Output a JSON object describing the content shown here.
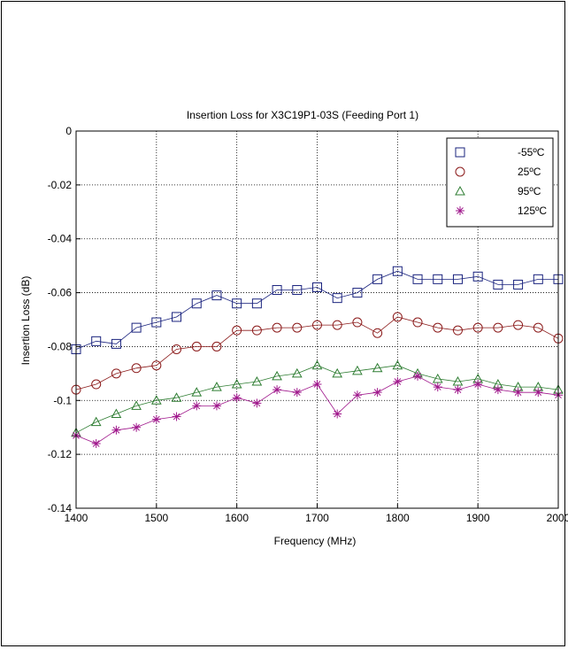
{
  "chart_data": {
    "type": "line",
    "title": "Insertion Loss for X3C19P1-03S (Feeding Port 1)",
    "xlabel": "Frequency (MHz)",
    "ylabel": "Insertion Loss (dB)",
    "xlim": [
      1400,
      2000
    ],
    "ylim": [
      -0.14,
      0
    ],
    "x_ticks": [
      1400,
      1500,
      1600,
      1700,
      1800,
      1900,
      2000
    ],
    "x_tick_labels": [
      "1400",
      "1500",
      "1600",
      "1700",
      "1800",
      "1900",
      "2000"
    ],
    "y_ticks": [
      0,
      -0.02,
      -0.04,
      -0.06,
      -0.08,
      -0.1,
      -0.12,
      -0.14
    ],
    "y_tick_labels": [
      "0",
      "-0.02",
      "-0.04",
      "-0.06",
      "-0.08",
      "-0.1",
      "-0.12",
      "-0.14"
    ],
    "grid": true,
    "legend_position": "top-right",
    "series": [
      {
        "name": "-55ºC",
        "color": "#1a237e",
        "marker": "square",
        "x": [
          1400,
          1425,
          1450,
          1475,
          1500,
          1525,
          1550,
          1575,
          1600,
          1625,
          1650,
          1675,
          1700,
          1725,
          1750,
          1775,
          1800,
          1825,
          1850,
          1875,
          1900,
          1925,
          1950,
          1975,
          2000
        ],
        "y": [
          -0.081,
          -0.078,
          -0.079,
          -0.073,
          -0.071,
          -0.069,
          -0.064,
          -0.061,
          -0.064,
          -0.064,
          -0.059,
          -0.059,
          -0.058,
          -0.062,
          -0.06,
          -0.055,
          -0.052,
          -0.055,
          -0.055,
          -0.055,
          -0.054,
          -0.057,
          -0.057,
          -0.055,
          -0.055
        ]
      },
      {
        "name": "25ºC",
        "color": "#8b1a1a",
        "marker": "circle",
        "x": [
          1400,
          1425,
          1450,
          1475,
          1500,
          1525,
          1550,
          1575,
          1600,
          1625,
          1650,
          1675,
          1700,
          1725,
          1750,
          1775,
          1800,
          1825,
          1850,
          1875,
          1900,
          1925,
          1950,
          1975,
          2000
        ],
        "y": [
          -0.096,
          -0.094,
          -0.09,
          -0.088,
          -0.087,
          -0.081,
          -0.08,
          -0.08,
          -0.074,
          -0.074,
          -0.073,
          -0.073,
          -0.072,
          -0.072,
          -0.071,
          -0.075,
          -0.069,
          -0.071,
          -0.073,
          -0.074,
          -0.073,
          -0.073,
          -0.072,
          -0.073,
          -0.077
        ]
      },
      {
        "name": "95ºC",
        "color": "#2e7d32",
        "marker": "triangle",
        "x": [
          1400,
          1425,
          1450,
          1475,
          1500,
          1525,
          1550,
          1575,
          1600,
          1625,
          1650,
          1675,
          1700,
          1725,
          1750,
          1775,
          1800,
          1825,
          1850,
          1875,
          1900,
          1925,
          1950,
          1975,
          2000
        ],
        "y": [
          -0.112,
          -0.108,
          -0.105,
          -0.102,
          -0.1,
          -0.099,
          -0.097,
          -0.095,
          -0.094,
          -0.093,
          -0.091,
          -0.09,
          -0.087,
          -0.09,
          -0.089,
          -0.088,
          -0.087,
          -0.09,
          -0.092,
          -0.093,
          -0.092,
          -0.094,
          -0.095,
          -0.095,
          -0.096
        ]
      },
      {
        "name": "125ºC",
        "color": "#a0188c",
        "marker": "star",
        "x": [
          1400,
          1425,
          1450,
          1475,
          1500,
          1525,
          1550,
          1575,
          1600,
          1625,
          1650,
          1675,
          1700,
          1725,
          1750,
          1775,
          1800,
          1825,
          1850,
          1875,
          1900,
          1925,
          1950,
          1975,
          2000
        ],
        "y": [
          -0.113,
          -0.116,
          -0.111,
          -0.11,
          -0.107,
          -0.106,
          -0.102,
          -0.102,
          -0.099,
          -0.101,
          -0.096,
          -0.097,
          -0.094,
          -0.105,
          -0.098,
          -0.097,
          -0.093,
          -0.091,
          -0.095,
          -0.096,
          -0.094,
          -0.096,
          -0.097,
          -0.097,
          -0.098
        ]
      }
    ]
  }
}
